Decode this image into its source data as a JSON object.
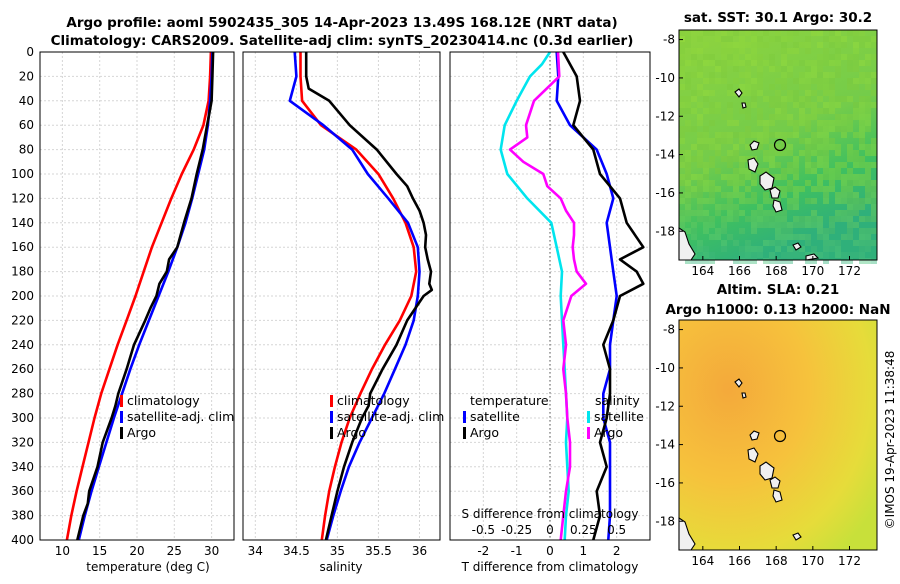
{
  "header": {
    "title_line1": "Argo profile: aoml 5902435_305 14-Apr-2023 13.49S 168.12E (NRT data)",
    "title_line2": "Climatology: CARS2009. Satellite-adj clim: synTS_20230414.nc (0.3d earlier)"
  },
  "credit": "©IMOS 19-Apr-2023 11:38:48",
  "colors": {
    "climatology": "#ff0000",
    "satellite": "#0000ff",
    "argo": "#000000",
    "salinity_diff": "#ff00ff",
    "sst_diff": "#00e5ee"
  },
  "depth_ticks": [
    "0",
    "20",
    "40",
    "60",
    "80",
    "100",
    "120",
    "140",
    "160",
    "180",
    "200",
    "220",
    "240",
    "260",
    "280",
    "300",
    "320",
    "340",
    "360",
    "380",
    "400"
  ],
  "chart_data": [
    {
      "type": "line",
      "name": "temperature-profile",
      "xlabel": "temperature (deg C)",
      "ylabel": "depth",
      "xlim": [
        7,
        33
      ],
      "ylim": [
        400,
        0
      ],
      "xticks": [
        10,
        15,
        20,
        25,
        30
      ],
      "xtick_labels": [
        "10",
        "15",
        "20",
        "25",
        "30"
      ],
      "legend": [
        "climatology",
        "satellite-adj. clim",
        "Argo"
      ],
      "series": [
        {
          "name": "climatology",
          "depth": [
            0,
            20,
            40,
            60,
            80,
            100,
            120,
            140,
            160,
            180,
            200,
            220,
            240,
            260,
            280,
            300,
            320,
            340,
            360,
            380,
            400
          ],
          "values": [
            29.9,
            29.8,
            29.6,
            28.9,
            27.6,
            26.0,
            24.6,
            23.3,
            22.0,
            20.9,
            19.8,
            18.6,
            17.4,
            16.3,
            15.2,
            14.3,
            13.5,
            12.7,
            11.9,
            11.2,
            10.6
          ]
        },
        {
          "name": "satellite-adj. clim",
          "depth": [
            0,
            20,
            40,
            60,
            80,
            100,
            120,
            140,
            160,
            180,
            200,
            220,
            240,
            260,
            280,
            300,
            320,
            340,
            360,
            380,
            400
          ],
          "values": [
            30.1,
            30.0,
            29.8,
            29.5,
            29.0,
            28.2,
            27.4,
            26.5,
            25.4,
            24.2,
            22.9,
            21.6,
            20.3,
            19.1,
            18.0,
            16.9,
            15.9,
            14.9,
            13.9,
            13.0,
            12.2
          ]
        },
        {
          "name": "Argo",
          "depth": [
            0,
            20,
            40,
            50,
            60,
            80,
            100,
            120,
            140,
            160,
            170,
            180,
            190,
            200,
            210,
            220,
            240,
            260,
            280,
            290,
            300,
            320,
            340,
            360,
            370,
            380,
            400
          ],
          "values": [
            30.2,
            30.1,
            30.0,
            29.7,
            29.4,
            28.8,
            28.0,
            27.3,
            26.3,
            25.4,
            24.3,
            24.0,
            23.0,
            22.6,
            21.8,
            21.1,
            19.6,
            18.6,
            17.5,
            17.1,
            16.6,
            15.4,
            14.7,
            13.6,
            13.4,
            12.8,
            12.0
          ]
        }
      ]
    },
    {
      "type": "line",
      "name": "salinity-profile",
      "xlabel": "salinity",
      "ylabel": "depth",
      "xlim": [
        33.85,
        36.25
      ],
      "ylim": [
        400,
        0
      ],
      "xticks": [
        34,
        34.5,
        35,
        35.5,
        36
      ],
      "xtick_labels": [
        "34",
        "34.5",
        "35",
        "35.5",
        "36"
      ],
      "legend": [
        "climatology",
        "satellite-adj. clim",
        "Argo"
      ],
      "series": [
        {
          "name": "climatology",
          "depth": [
            0,
            20,
            40,
            60,
            80,
            100,
            120,
            140,
            160,
            180,
            200,
            220,
            240,
            260,
            280,
            300,
            320,
            340,
            360,
            380,
            400
          ],
          "values": [
            34.55,
            34.55,
            34.57,
            34.8,
            35.23,
            35.5,
            35.68,
            35.83,
            35.93,
            35.96,
            35.9,
            35.76,
            35.58,
            35.42,
            35.28,
            35.15,
            35.05,
            34.97,
            34.9,
            34.85,
            34.81
          ]
        },
        {
          "name": "satellite-adj. clim",
          "depth": [
            0,
            20,
            40,
            60,
            80,
            100,
            120,
            140,
            160,
            180,
            200,
            220,
            240,
            260,
            280,
            300,
            320,
            340,
            360,
            380,
            400
          ],
          "values": [
            34.48,
            34.5,
            34.42,
            34.83,
            35.18,
            35.37,
            35.62,
            35.86,
            35.98,
            36.0,
            35.98,
            35.93,
            35.83,
            35.7,
            35.57,
            35.42,
            35.27,
            35.14,
            35.04,
            34.95,
            34.87
          ]
        },
        {
          "name": "Argo",
          "depth": [
            0,
            20,
            30,
            40,
            60,
            80,
            100,
            110,
            120,
            130,
            140,
            150,
            160,
            170,
            180,
            190,
            195,
            200,
            220,
            240,
            260,
            280,
            290,
            300,
            320,
            340,
            360,
            380,
            400
          ],
          "values": [
            34.62,
            34.62,
            34.65,
            34.9,
            35.15,
            35.48,
            35.72,
            35.85,
            35.92,
            36.0,
            36.05,
            36.08,
            36.07,
            36.1,
            36.14,
            36.12,
            36.15,
            36.05,
            35.85,
            35.72,
            35.55,
            35.4,
            35.38,
            35.3,
            35.18,
            35.08,
            35.0,
            34.93,
            34.86
          ]
        }
      ]
    },
    {
      "type": "line",
      "name": "difference-profile",
      "xlabel": "T difference from climatology",
      "xlabel_top": "S difference from climatology",
      "xlim": [
        -3.0,
        3.0
      ],
      "ylim": [
        400,
        0
      ],
      "xticks": [
        -2,
        -1,
        0,
        1,
        2
      ],
      "xtick_labels": [
        "-2",
        "-1",
        "0",
        "1",
        "2"
      ],
      "s_ticks": [
        -0.5,
        -0.25,
        0,
        0.25,
        0.5
      ],
      "s_tick_labels": [
        "-0.5",
        "-0.25",
        "0",
        "0.25",
        "0.5"
      ],
      "legend_left_title": "temperature",
      "legend_left": [
        "satellite",
        "Argo"
      ],
      "legend_right_title": "salinity",
      "legend_right": [
        "satellite",
        "Argo"
      ],
      "series": [
        {
          "name": "temperature satellite",
          "depth": [
            0,
            20,
            40,
            60,
            80,
            100,
            120,
            140,
            160,
            180,
            200,
            220,
            240,
            260,
            280,
            300,
            320,
            340,
            360,
            380,
            400
          ],
          "values": [
            0.2,
            0.25,
            0.2,
            0.6,
            1.4,
            1.7,
            1.9,
            1.7,
            1.8,
            1.9,
            2.0,
            1.9,
            1.8,
            1.8,
            1.6,
            1.6,
            1.8,
            1.8,
            1.8,
            1.8,
            1.75
          ]
        },
        {
          "name": "temperature Argo",
          "depth": [
            0,
            20,
            40,
            60,
            80,
            100,
            120,
            140,
            160,
            170,
            180,
            190,
            200,
            220,
            240,
            260,
            280,
            300,
            320,
            340,
            360,
            380,
            400
          ],
          "values": [
            0.4,
            0.8,
            0.9,
            0.7,
            1.3,
            1.5,
            2.1,
            2.3,
            2.8,
            2.1,
            2.6,
            2.8,
            2.1,
            1.9,
            1.6,
            1.8,
            1.8,
            1.7,
            1.5,
            1.7,
            1.4,
            1.5,
            1.3
          ]
        },
        {
          "name": "salinity satellite",
          "depth": [
            0,
            10,
            20,
            30,
            40,
            60,
            80,
            100,
            120,
            140,
            160,
            180,
            200,
            220,
            240,
            260,
            280,
            300,
            320,
            340,
            360,
            380,
            400
          ],
          "values": [
            0.0,
            -0.06,
            -0.15,
            -0.2,
            -0.25,
            -0.34,
            -0.37,
            -0.32,
            -0.17,
            0.01,
            0.05,
            0.09,
            0.08,
            0.09,
            0.1,
            0.11,
            0.12,
            0.13,
            0.12,
            0.13,
            0.14,
            0.12,
            0.11
          ]
        },
        {
          "name": "salinity Argo",
          "depth": [
            0,
            20,
            40,
            60,
            70,
            80,
            90,
            100,
            110,
            120,
            130,
            140,
            150,
            160,
            170,
            180,
            190,
            200,
            220,
            240,
            260,
            280,
            300,
            320,
            340,
            360,
            380,
            400
          ],
          "values": [
            0.06,
            0.07,
            -0.12,
            -0.18,
            -0.17,
            -0.3,
            -0.2,
            -0.05,
            -0.02,
            0.08,
            0.12,
            0.18,
            0.18,
            0.17,
            0.18,
            0.2,
            0.27,
            0.16,
            0.1,
            0.12,
            0.1,
            0.12,
            0.13,
            0.15,
            0.15,
            0.12,
            0.1,
            0.08
          ]
        }
      ]
    },
    {
      "type": "heatmap",
      "name": "sst-map",
      "title": "sat. SST: 30.1 Argo: 30.2",
      "xlim": [
        162.7,
        173.5
      ],
      "ylim": [
        -19.5,
        -7.5
      ],
      "xtick_labels": [
        "164",
        "166",
        "168",
        "170",
        "172"
      ],
      "ytick_labels": [
        "-8",
        "-10",
        "-12",
        "-14",
        "-16",
        "-18"
      ]
    },
    {
      "type": "heatmap",
      "name": "sla-map",
      "title_line1": "Altim. SLA: 0.21",
      "title_line2": "Argo h1000: 0.13 h2000: NaN",
      "xlim": [
        162.7,
        173.5
      ],
      "ylim": [
        -19.5,
        -7.5
      ],
      "xtick_labels": [
        "164",
        "166",
        "168",
        "170",
        "172"
      ],
      "ytick_labels": [
        "-8",
        "-10",
        "-12",
        "-14",
        "-16",
        "-18"
      ]
    }
  ]
}
